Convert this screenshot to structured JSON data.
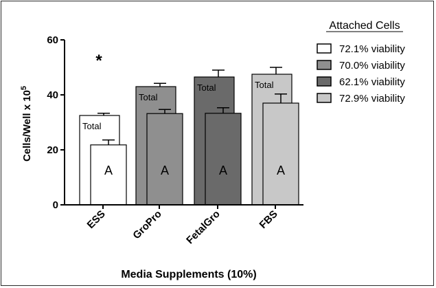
{
  "chart_data": {
    "type": "bar",
    "categories": [
      "ESS",
      "GroPro",
      "FetalGro",
      "FBS"
    ],
    "series": [
      {
        "name": "Total",
        "values": [
          32.5,
          43.0,
          46.5,
          47.5
        ],
        "errors": [
          0.8,
          1.2,
          2.5,
          2.5
        ]
      },
      {
        "name": "A",
        "values": [
          21.8,
          33.2,
          33.3,
          37.0
        ],
        "errors": [
          1.8,
          1.5,
          2.0,
          3.3
        ]
      }
    ],
    "colors": [
      "#ffffff",
      "#8f8f8f",
      "#6a6a6a",
      "#c8c8c8"
    ],
    "xlabel": "Media Supplements (10%)",
    "ylabel_base": "Cells/Well x 10",
    "ylabel_sup": "5",
    "ylim": [
      0,
      60
    ],
    "yticks": [
      "0",
      "20",
      "40",
      "60"
    ],
    "significance_mark": "*",
    "legend": {
      "title": "Attached Cells",
      "position": "top-right",
      "entries": [
        "72.1% viability",
        "70.0% viability",
        "62.1% viability",
        "72.9% viability"
      ]
    }
  }
}
